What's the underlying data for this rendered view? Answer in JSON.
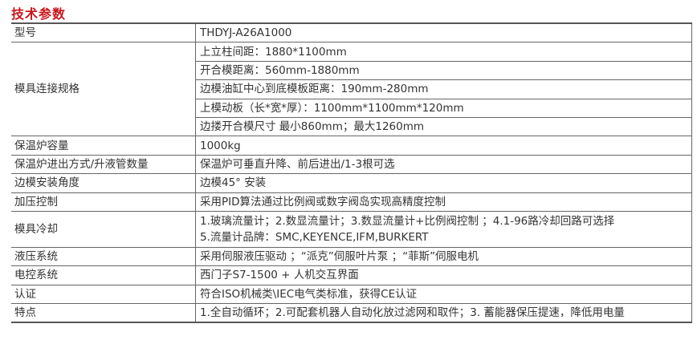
{
  "title": "技术参数",
  "rows": [
    {
      "label": "型号",
      "values": [
        "THDYJ-A26A1000"
      ]
    },
    {
      "label": "模具连接规格",
      "values": [
        "上立柱间距：1880*1100mm",
        "开合模距离：560mm-1880mm",
        "边模油缸中心到底模板距离：190mm-280mm",
        "上模动板（长*宽*厚）：1100mm*1100mm*120mm",
        "边搂开合模尺寸 最小860mm；最大1260mm"
      ]
    },
    {
      "label": "保温炉容量",
      "values": [
        "1000kg"
      ]
    },
    {
      "label": "保温炉进出方式/升液管数量",
      "values": [
        "保温炉可垂直升降、前后进出/1-3根可选"
      ]
    },
    {
      "label": "边模安装角度",
      "values": [
        "边模45° 安装"
      ]
    },
    {
      "label": "加压控制",
      "values": [
        "采用PID算法通过比例阀或数字阀岛实现高精度控制"
      ]
    },
    {
      "label": "模具冷却",
      "values": [
        "1.玻璃流量计；2.数显流量计；3.数显流量计+比例阀控制 ；4.1-96路冷却回路可选择",
        "5.流量计品牌：SMC,KEYENCE,IFM,BURKERT"
      ]
    },
    {
      "label": "液压系统",
      "values": [
        "采用伺服液压驱动 ；“派克”伺服叶片泵 ；“菲斯”伺服电机"
      ]
    },
    {
      "label": "电控系统",
      "values": [
        "西门子S7-1500 + 人机交互界面"
      ]
    },
    {
      "label": "认证",
      "values": [
        "符合ISO机械类\\IEC电气类标准，获得CE认证"
      ]
    },
    {
      "label": "特点",
      "values": [
        "1.全自动循环；2.可配套机器人自动化放过滤网和取件；3. 蓄能器保压提速，降低用电量"
      ]
    }
  ]
}
